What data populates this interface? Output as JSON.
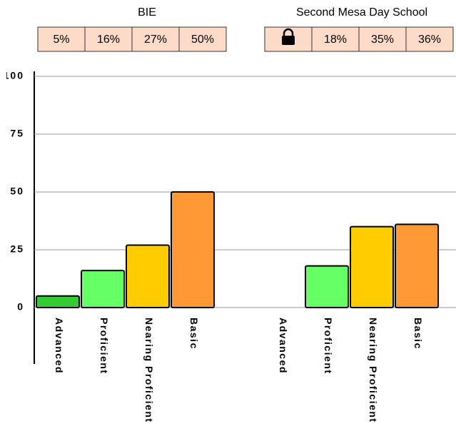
{
  "chart_data": {
    "type": "bar",
    "categories": [
      "Advanced",
      "Proficient",
      "Nearing Proficient",
      "Basic"
    ],
    "colors": [
      "#33cc33",
      "#66ff66",
      "#ffcc00",
      "#ff9933"
    ],
    "series": [
      {
        "name": "BIE",
        "values": [
          5,
          16,
          27,
          50
        ],
        "value_labels": [
          "5%",
          "16%",
          "27%",
          "50%"
        ]
      },
      {
        "name": "Second Mesa Day School",
        "values": [
          null,
          18,
          35,
          36
        ],
        "value_labels": [
          null,
          "18%",
          "35%",
          "36%"
        ]
      }
    ],
    "ylim": [
      0,
      100
    ],
    "yticks": [
      0,
      25,
      50,
      75,
      100
    ],
    "grid": true
  }
}
